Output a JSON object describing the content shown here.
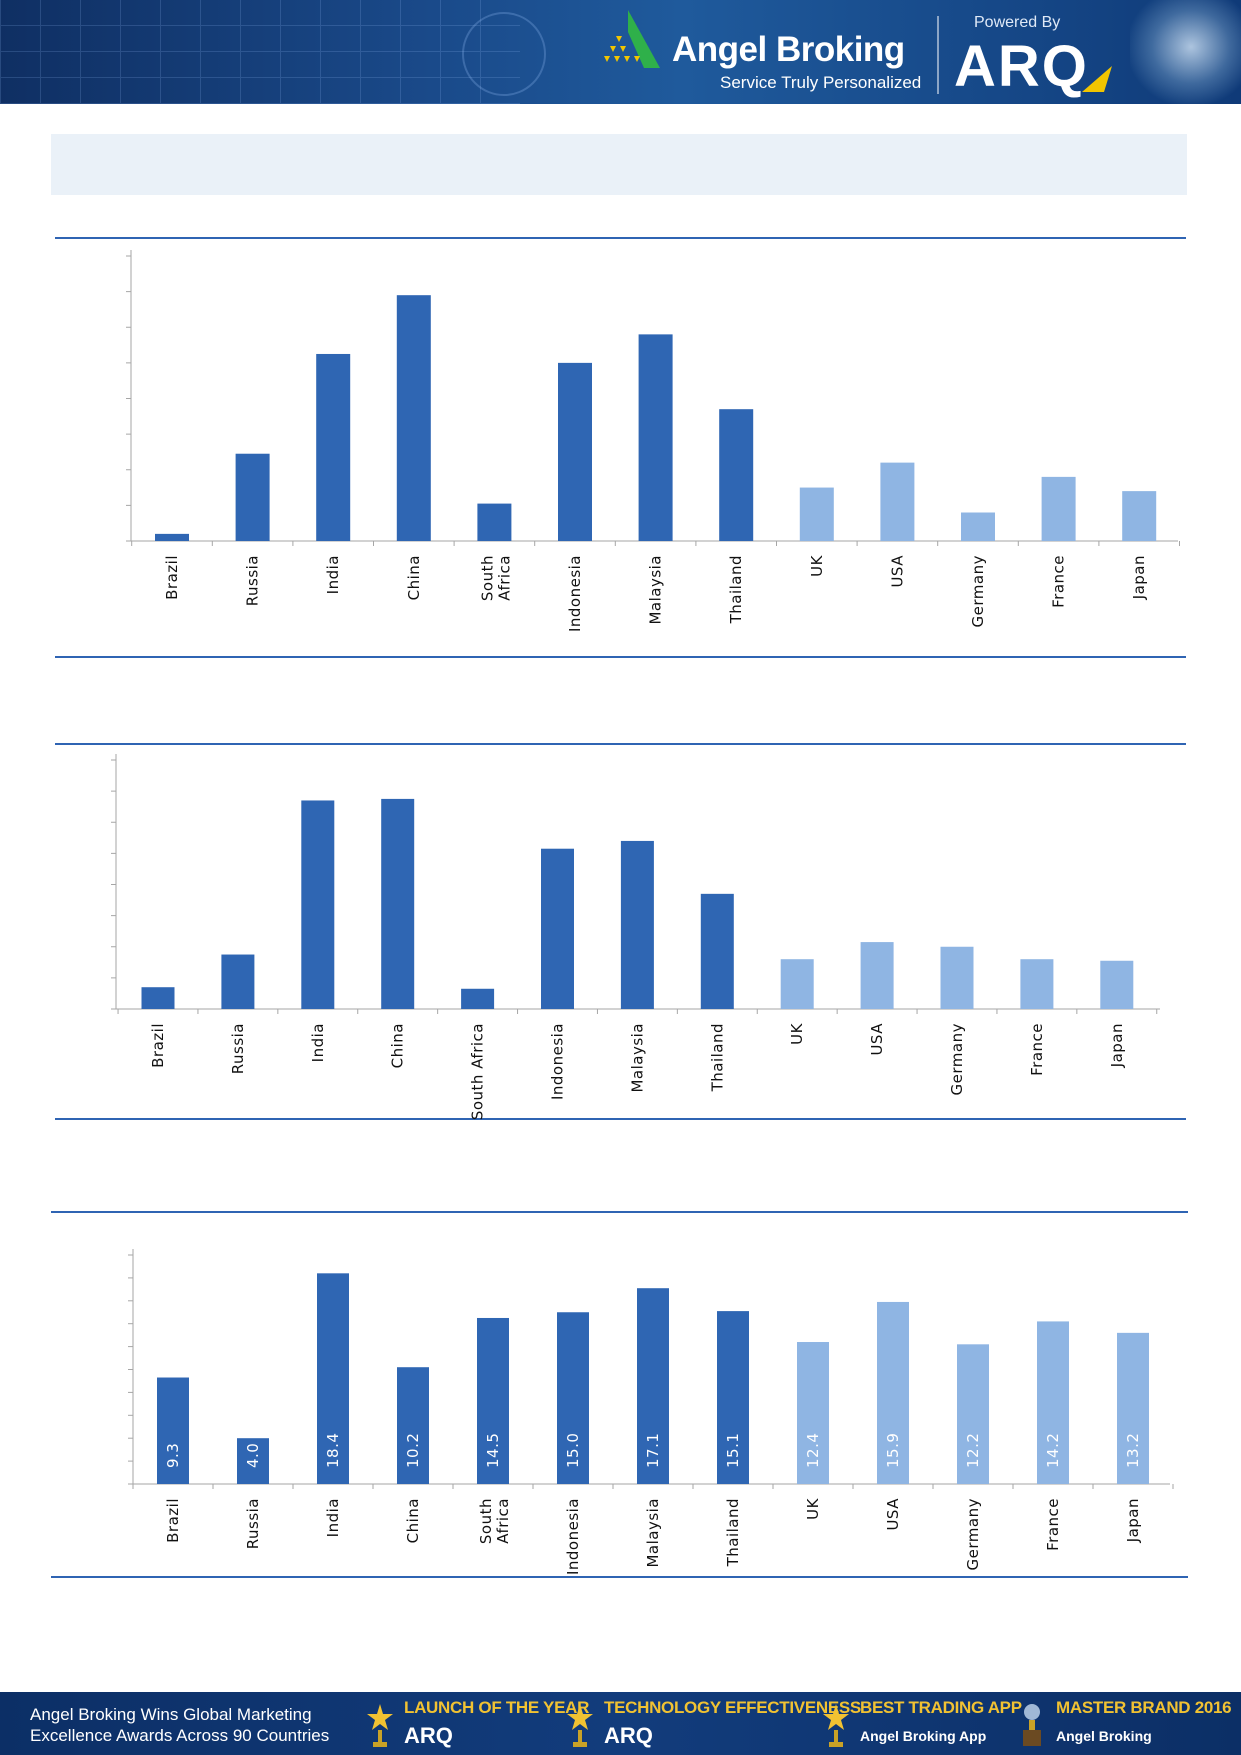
{
  "header": {
    "brand_name": "Angel Broking",
    "brand_tagline": "Service Truly Personalized",
    "powered_by": "Powered By",
    "arq": "ARQ"
  },
  "colors": {
    "emerging": "#2f66b3",
    "developed": "#8fb5e3",
    "rule": "#2f64b3",
    "band": "#eaf1f8"
  },
  "chart_data": [
    {
      "type": "bar",
      "categories": [
        "Brazil",
        "Russia",
        "India",
        "China",
        "South Africa",
        "Indonesia",
        "Malaysia",
        "Thailand",
        "UK",
        "USA",
        "Germany",
        "France",
        "Japan"
      ],
      "values": [
        0.2,
        2.45,
        5.25,
        6.9,
        1.05,
        5.0,
        5.8,
        3.7,
        1.5,
        2.2,
        0.8,
        1.8,
        1.4
      ],
      "groups": [
        "emerging",
        "emerging",
        "emerging",
        "emerging",
        "emerging",
        "emerging",
        "emerging",
        "emerging",
        "developed",
        "developed",
        "developed",
        "developed",
        "developed"
      ],
      "ylim": [
        0,
        8
      ],
      "yticks": 8,
      "tick_labels_shown": false,
      "grid": false
    },
    {
      "type": "bar",
      "categories": [
        "Brazil",
        "Russia",
        "India",
        "China",
        "South Africa",
        "Indonesia",
        "Malaysia",
        "Thailand",
        "UK",
        "USA",
        "Germany",
        "France",
        "Japan"
      ],
      "values": [
        0.7,
        1.75,
        6.7,
        6.75,
        0.65,
        5.15,
        5.4,
        3.7,
        1.6,
        2.15,
        2.0,
        1.6,
        1.55
      ],
      "groups": [
        "emerging",
        "emerging",
        "emerging",
        "emerging",
        "emerging",
        "emerging",
        "emerging",
        "emerging",
        "developed",
        "developed",
        "developed",
        "developed",
        "developed"
      ],
      "ylim": [
        0,
        8
      ],
      "yticks": 8,
      "tick_labels_shown": false,
      "grid": false
    },
    {
      "type": "bar",
      "categories": [
        "Brazil",
        "Russia",
        "India",
        "China",
        "South Africa",
        "Indonesia",
        "Malaysia",
        "Thailand",
        "UK",
        "USA",
        "Germany",
        "France",
        "Japan"
      ],
      "values": [
        9.3,
        4.0,
        18.4,
        10.2,
        14.5,
        15.0,
        17.1,
        15.1,
        12.4,
        15.9,
        12.2,
        14.2,
        13.2
      ],
      "value_labels": [
        "9.3",
        "4.0",
        "18.4",
        "10.2",
        "14.5",
        "15.0",
        "17.1",
        "15.1",
        "12.4",
        "15.9",
        "12.2",
        "14.2",
        "13.2"
      ],
      "groups": [
        "emerging",
        "emerging",
        "emerging",
        "emerging",
        "emerging",
        "emerging",
        "emerging",
        "emerging",
        "developed",
        "developed",
        "developed",
        "developed",
        "developed"
      ],
      "ylim": [
        0,
        20
      ],
      "yticks": 10,
      "tick_labels_shown": false,
      "grid": false
    }
  ],
  "footer": {
    "line1": "Angel Broking Wins Global Marketing",
    "line2": "Excellence Awards Across 90 Countries",
    "awards": [
      {
        "title": "LAUNCH OF THE YEAR",
        "sub": "ARQ"
      },
      {
        "title": "TECHNOLOGY EFFECTIVENESS",
        "sub": "ARQ"
      },
      {
        "title": "BEST TRADING APP",
        "sub": "Angel Broking App"
      },
      {
        "title": "MASTER BRAND 2016",
        "sub": "Angel Broking"
      }
    ]
  }
}
